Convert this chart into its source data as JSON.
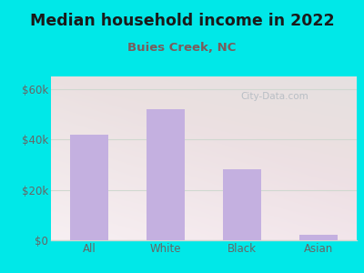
{
  "title": "Median household income in 2022",
  "subtitle": "Buies Creek, NC",
  "categories": [
    "All",
    "White",
    "Black",
    "Asian"
  ],
  "values": [
    42000,
    52000,
    28000,
    2000
  ],
  "bar_color": "#c4b0e0",
  "title_fontsize": 12.5,
  "subtitle_fontsize": 9.5,
  "subtitle_color": "#7a5c5c",
  "tick_label_fontsize": 8.5,
  "ytick_labels": [
    "$0",
    "$20k",
    "$40k",
    "$60k"
  ],
  "ytick_values": [
    0,
    20000,
    40000,
    60000
  ],
  "ylim": [
    0,
    65000
  ],
  "background_outer": "#00e8e8",
  "plot_bg": "#e8f5ea",
  "watermark_text": "City-Data.com",
  "watermark_color": "#b0b8c0",
  "grid_color": "#d0d8d0",
  "tick_color": "#666666"
}
